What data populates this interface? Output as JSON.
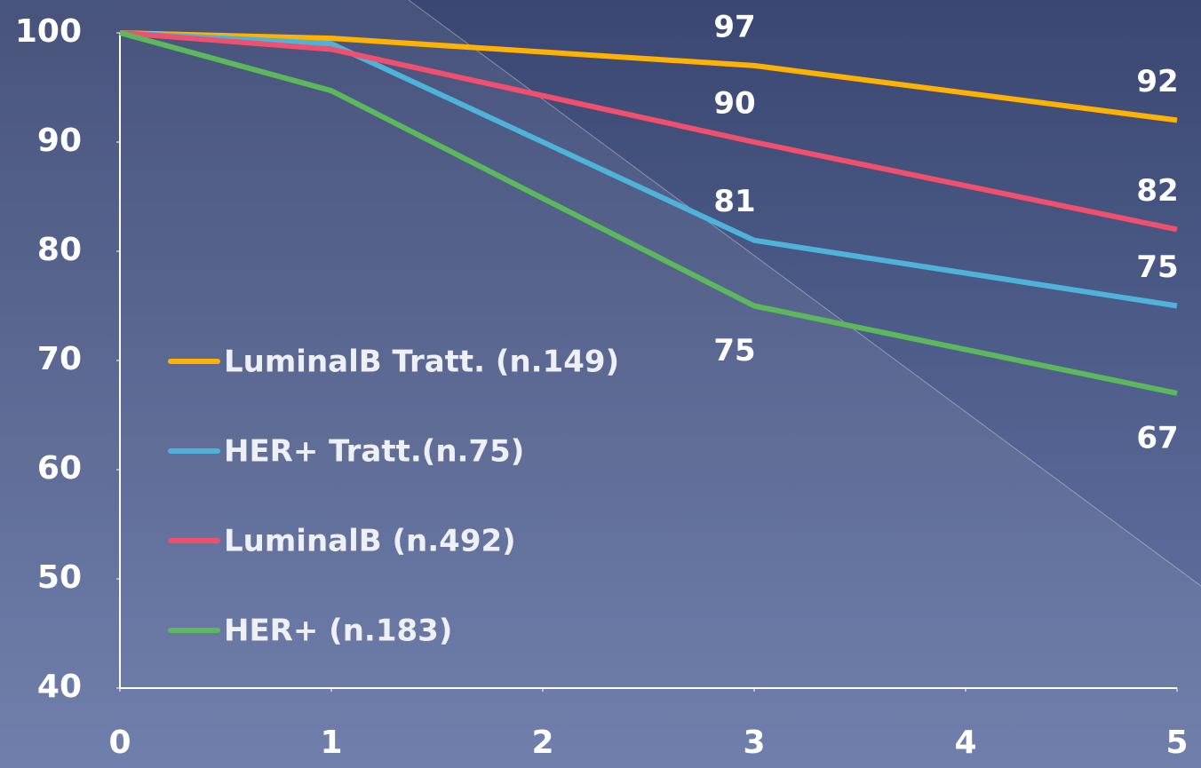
{
  "chart_data": {
    "type": "line",
    "x": [
      0,
      1,
      3,
      5
    ],
    "series": [
      {
        "name": "LuminalB Tratt. (n.149)",
        "color": "#ffb300",
        "values": [
          100,
          99.5,
          97,
          92
        ]
      },
      {
        "name": "HER+ Tratt.(n.75)",
        "color": "#4fb3d9",
        "values": [
          100,
          99,
          81,
          75
        ]
      },
      {
        "name": "LuminalB (n.492)",
        "color": "#f0506e",
        "values": [
          100,
          98.5,
          90,
          82
        ]
      },
      {
        "name": "HER+ (n.183)",
        "color": "#5cb85c",
        "values": [
          100,
          94.7,
          75,
          67
        ]
      }
    ],
    "xlim": [
      0,
      5
    ],
    "xticks": [
      0,
      1,
      2,
      3,
      4,
      5
    ],
    "ylim": [
      40,
      100
    ],
    "yticks": [
      40,
      50,
      60,
      70,
      80,
      90,
      100
    ]
  }
}
